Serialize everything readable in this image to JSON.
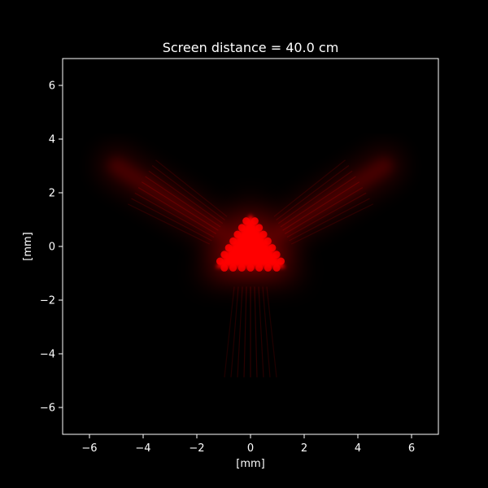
{
  "chart_data": {
    "type": "heatmap",
    "title": "Screen distance = 40.0 cm",
    "xlabel": "[mm]",
    "ylabel": "[mm]",
    "xlim": [
      -7,
      7
    ],
    "ylim": [
      -7,
      7
    ],
    "xticks": [
      -6,
      -4,
      -2,
      0,
      2,
      4,
      6
    ],
    "yticks": [
      -6,
      -4,
      -2,
      0,
      2,
      4,
      6
    ],
    "xtick_labels": [
      "−6",
      "−4",
      "−2",
      "0",
      "2",
      "4",
      "6"
    ],
    "ytick_labels": [
      "−6",
      "−4",
      "−2",
      "0",
      "2",
      "4",
      "6"
    ],
    "grid": false,
    "colormap": "black-to-red",
    "colors": {
      "background": "#000000",
      "foreground": "#ffffff",
      "intensity": "#ff0000"
    },
    "bright_region": {
      "shape": "triangle",
      "vertices": [
        [
          0,
          1.2
        ],
        [
          -1.3,
          -0.8
        ],
        [
          1.3,
          -0.8
        ]
      ]
    },
    "diffraction_arms": [
      {
        "from": [
          -1.2,
          0.6
        ],
        "to": [
          -5.0,
          3.0
        ]
      },
      {
        "from": [
          1.2,
          0.6
        ],
        "to": [
          5.0,
          3.0
        ]
      },
      {
        "from": [
          0,
          -1.5
        ],
        "to": [
          0,
          -6.0
        ]
      }
    ]
  }
}
